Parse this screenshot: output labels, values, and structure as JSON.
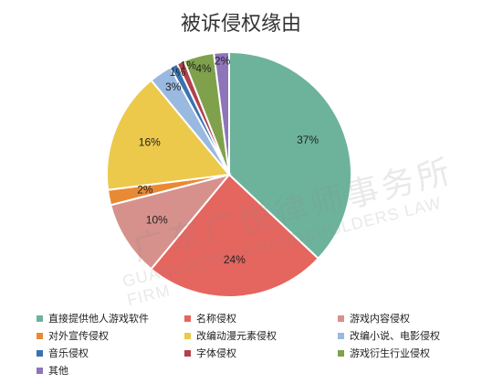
{
  "chart_data": {
    "type": "pie",
    "title": "被诉侵权缘由",
    "categories": [
      "直接提供他人游戏软件",
      "名称侵权",
      "游戏内容侵权",
      "对外宣传侵权",
      "改编动漫元素侵权",
      "改编小说、电影侵权",
      "音乐侵权",
      "字体侵权",
      "游戏衍生行业侵权",
      "其他"
    ],
    "values": [
      37,
      24,
      10,
      2,
      16,
      3,
      1,
      1,
      4,
      2
    ],
    "labels": [
      "37%",
      "24%",
      "10%",
      "2%",
      "16%",
      "3%",
      "1%",
      "1%",
      "4%",
      "2%"
    ],
    "colors": [
      "#6db39c",
      "#e5655f",
      "#d7918c",
      "#e88a35",
      "#ecc94b",
      "#9ab9e0",
      "#3a72b0",
      "#b3404a",
      "#7fa14c",
      "#8e74b9"
    ],
    "legend": "bottom"
  },
  "watermark": {
    "chinese": "广东广悦律师事务所",
    "english": "GUANGDONG GRAND&HOLDERS LAW FIRM"
  }
}
